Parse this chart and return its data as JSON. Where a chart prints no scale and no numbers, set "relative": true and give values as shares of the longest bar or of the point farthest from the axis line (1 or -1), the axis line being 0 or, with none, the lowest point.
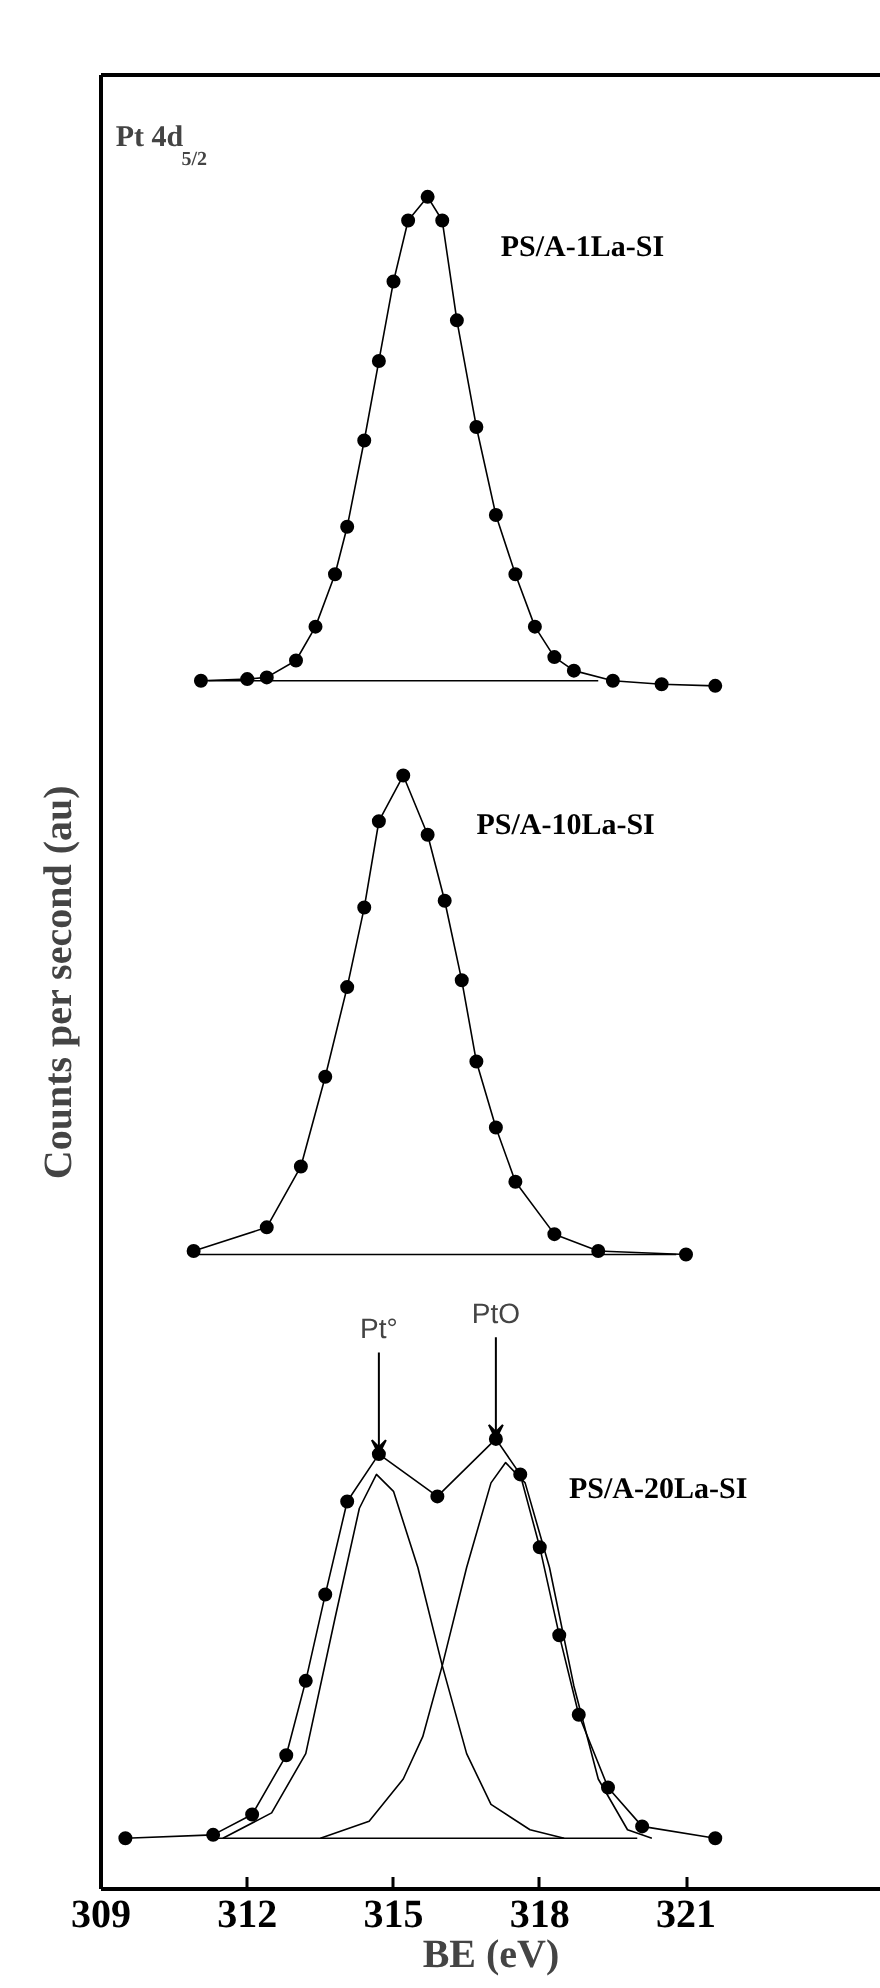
{
  "chart_data": {
    "type": "line",
    "relative": true,
    "xlabel": "BE (eV)",
    "ylabel": "Counts per second (au)",
    "xlim": [
      309,
      325
    ],
    "xticks": [
      309,
      312,
      315,
      318,
      321
    ],
    "tick_labels": "x",
    "grid": false,
    "marker": "circle",
    "line_style": "solid",
    "annotations": [
      "Pt 4d$_{5/2}$",
      {
        "text": "Pt°",
        "x": 314.7,
        "y": 0.257
      },
      {
        "text": "PtO",
        "x": 317.1,
        "y": 0.266
      }
    ],
    "series": [
      {
        "name": "PS/A-1La-SI",
        "color": "#000000",
        "x": [
          311.05,
          312.0,
          312.4,
          313.0,
          313.4,
          313.8,
          314.05,
          314.4,
          314.7,
          315.0,
          315.3,
          315.7,
          316.0,
          316.3,
          316.7,
          317.1,
          317.5,
          317.9,
          318.3,
          318.7,
          319.5,
          320.5,
          321.6
        ],
        "values": [
          0.714,
          0.715,
          0.716,
          0.726,
          0.746,
          0.777,
          0.805,
          0.856,
          0.903,
          0.95,
          0.986,
          1.0,
          0.986,
          0.927,
          0.864,
          0.812,
          0.777,
          0.746,
          0.728,
          0.72,
          0.714,
          0.712,
          0.711
        ]
      },
      {
        "color": "#000000",
        "type": "line",
        "marker": "none",
        "x": [
          311.2,
          319.2
        ],
        "values": [
          0.714,
          0.714
        ]
      },
      {
        "name": "PS/A-10La-SI",
        "color": "#000000",
        "x": [
          310.9,
          312.4,
          313.1,
          313.6,
          314.05,
          314.4,
          314.7,
          315.2,
          315.7,
          316.05,
          316.4,
          316.7,
          317.1,
          317.5,
          318.3,
          319.2,
          321.0
        ],
        "values": [
          0.377,
          0.391,
          0.427,
          0.48,
          0.533,
          0.58,
          0.631,
          0.658,
          0.623,
          0.584,
          0.537,
          0.489,
          0.45,
          0.418,
          0.387,
          0.377,
          0.375
        ]
      },
      {
        "color": "#000000",
        "type": "line",
        "marker": "none",
        "x": [
          311.0,
          320.8
        ],
        "values": [
          0.375,
          0.375
        ]
      },
      {
        "name": "PS/A-20La-SI",
        "color": "#000000",
        "x": [
          309.5,
          311.3,
          312.1,
          312.8,
          313.2,
          313.6,
          314.05,
          314.7,
          315.9,
          317.1,
          317.6,
          318.0,
          318.4,
          318.8,
          319.4,
          320.1,
          321.6
        ],
        "values": [
          0.03,
          0.032,
          0.044,
          0.079,
          0.123,
          0.174,
          0.229,
          0.257,
          0.232,
          0.266,
          0.245,
          0.202,
          0.15,
          0.103,
          0.06,
          0.037,
          0.03
        ]
      },
      {
        "color": "#000000",
        "type": "line",
        "marker": "none",
        "x": [
          311.5,
          312.5,
          313.2,
          313.8,
          314.3,
          314.65,
          315.0,
          315.5,
          316.0,
          316.5,
          317.0,
          317.8,
          318.5
        ],
        "values": [
          0.03,
          0.045,
          0.08,
          0.16,
          0.225,
          0.245,
          0.235,
          0.19,
          0.132,
          0.08,
          0.05,
          0.035,
          0.03
        ]
      },
      {
        "color": "#000000",
        "type": "line",
        "marker": "none",
        "x": [
          313.5,
          314.5,
          315.2,
          315.6,
          316.0,
          316.5,
          317.0,
          317.3,
          317.7,
          318.2,
          318.7,
          319.2,
          319.8,
          320.3
        ],
        "values": [
          0.03,
          0.04,
          0.065,
          0.09,
          0.132,
          0.19,
          0.24,
          0.252,
          0.24,
          0.19,
          0.12,
          0.065,
          0.035,
          0.03
        ]
      },
      {
        "color": "#000000",
        "type": "line",
        "marker": "none",
        "x": [
          311.3,
          320.0
        ],
        "values": [
          0.03,
          0.03
        ]
      }
    ]
  }
}
